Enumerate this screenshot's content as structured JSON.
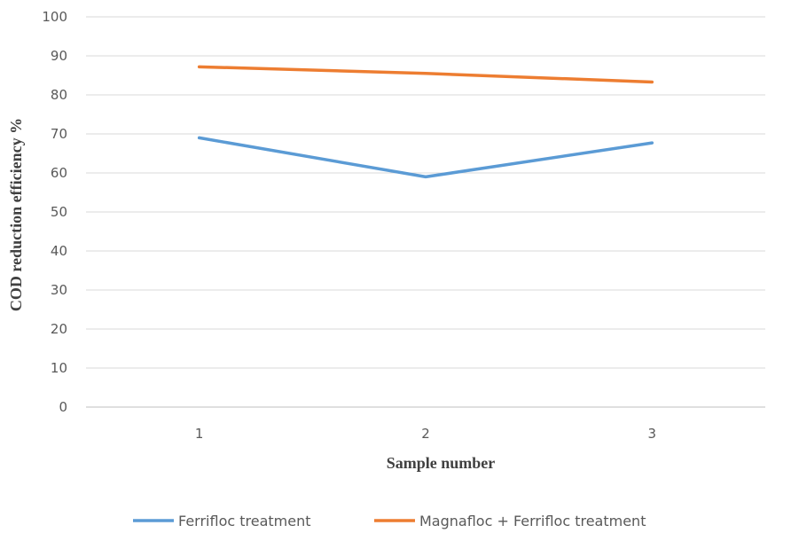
{
  "chart_data": {
    "type": "line",
    "xlabel": "Sample number",
    "ylabel": "COD reduction efficiency %",
    "categories": [
      "1",
      "2",
      "3"
    ],
    "ylim": [
      0,
      100
    ],
    "yticks": [
      0,
      10,
      20,
      30,
      40,
      50,
      60,
      70,
      80,
      90,
      100
    ],
    "grid": true,
    "legend_position": "bottom",
    "series": [
      {
        "name": "Ferrifloc treatment",
        "color": "#5B9BD5",
        "values": [
          69,
          59,
          67.7
        ]
      },
      {
        "name": "Magnafloc + Ferrifloc treatment",
        "color": "#ED7D31",
        "values": [
          87.2,
          85.5,
          83.3
        ]
      }
    ]
  }
}
